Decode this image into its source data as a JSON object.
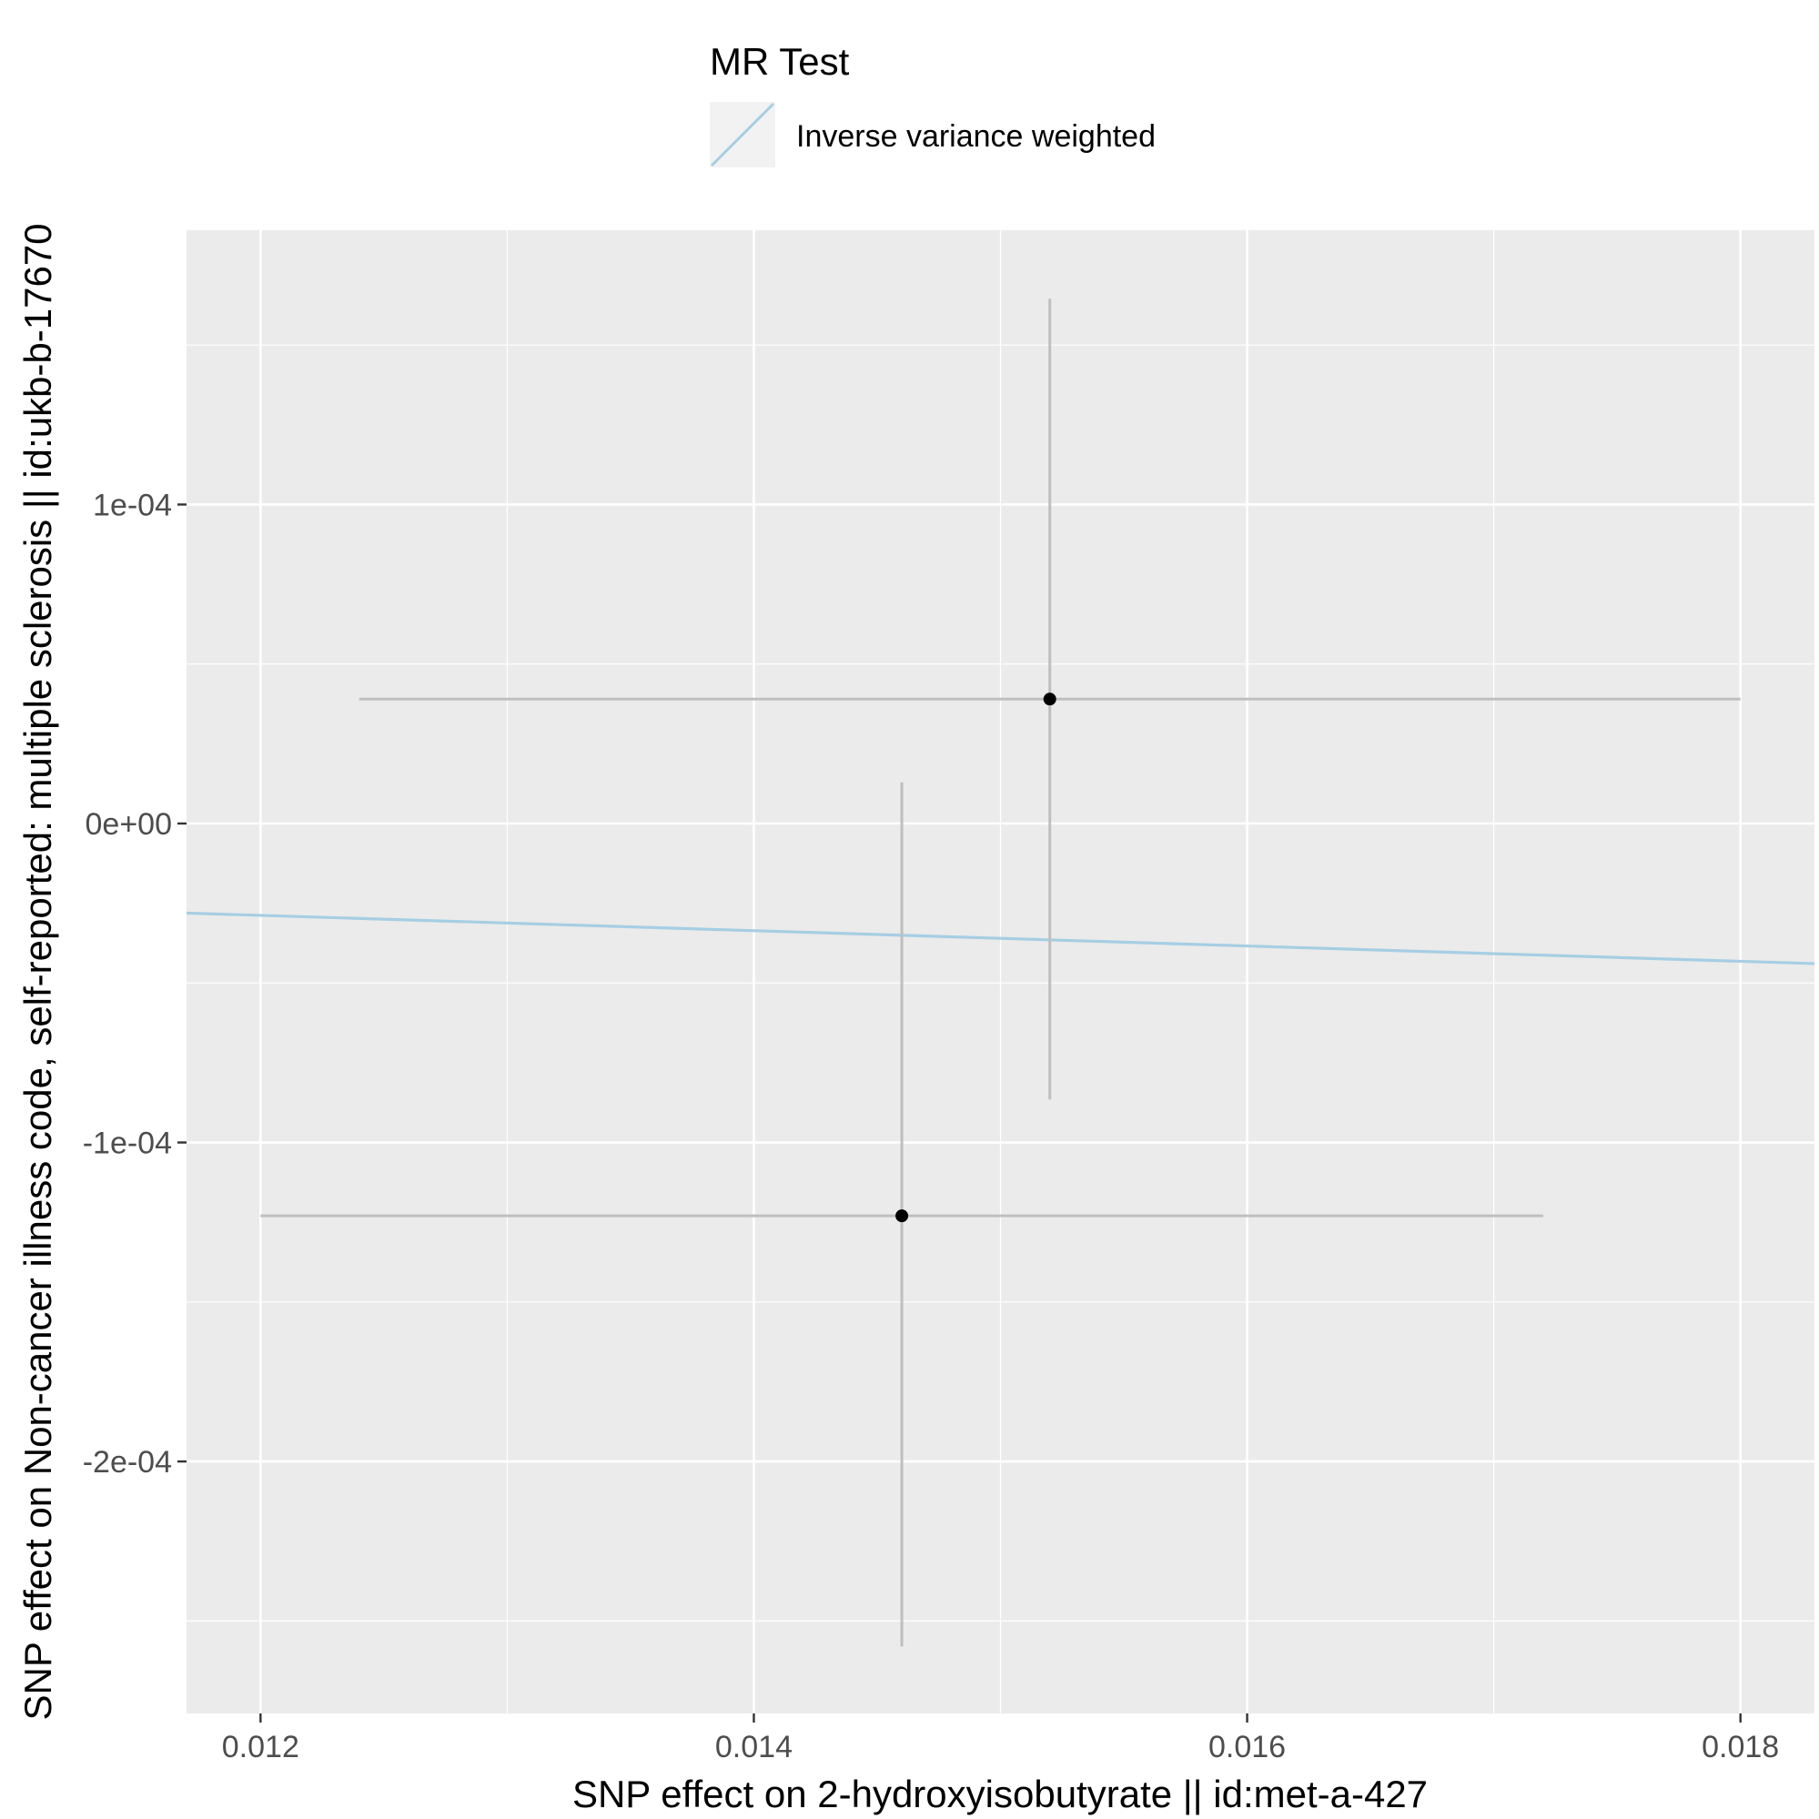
{
  "chart_data": {
    "type": "scatter",
    "legend": {
      "title": "MR Test",
      "position": "top",
      "entries": [
        {
          "label": "Inverse variance weighted",
          "color": "#a6cee3"
        }
      ]
    },
    "xlabel": "SNP effect on 2-hydroxyisobutyrate || id:met-a-427",
    "ylabel": "SNP effect on Non-cancer illness code, self-reported: multiple sclerosis || id:ukb-b-17670",
    "xlim": [
      0.0117,
      0.0183
    ],
    "ylim": [
      -0.000279,
      0.000186
    ],
    "x_ticks": [
      0.012,
      0.014,
      0.016,
      0.018
    ],
    "x_tick_labels": [
      "0.012",
      "0.014",
      "0.016",
      "0.018"
    ],
    "y_ticks": [
      -0.0002,
      -0.0001,
      0,
      0.0001
    ],
    "y_tick_labels": [
      "-2e-04",
      "-1e-04",
      "0e+00",
      "1e-04"
    ],
    "grid": true,
    "points": [
      {
        "x": 0.0152,
        "y": 3.9e-05,
        "x_low": 0.0124,
        "x_high": 0.018,
        "y_low": -8.65e-05,
        "y_high": 0.0001645
      },
      {
        "x": 0.0146,
        "y": -0.000123,
        "x_low": 0.012,
        "x_high": 0.0172,
        "y_low": -0.000258,
        "y_high": 1.29e-05
      }
    ],
    "lines": [
      {
        "name": "Inverse variance weighted",
        "slope": -0.0024,
        "intercept": 0,
        "color": "#a6cee3"
      }
    ],
    "colors": {
      "panel_bg": "#ebebeb",
      "grid": "#ffffff",
      "errorbar": "#bfbfbf",
      "point": "#000000",
      "tick_text": "#4d4d4d"
    }
  }
}
